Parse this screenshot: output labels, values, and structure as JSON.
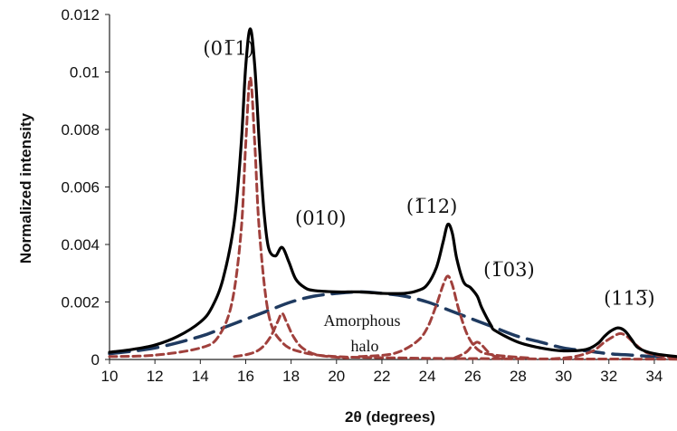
{
  "chart_data": {
    "type": "line",
    "xlabel": "2θ (degrees)",
    "ylabel": "Normalized intensity",
    "xlim": [
      10,
      35
    ],
    "ylim": [
      0,
      0.012
    ],
    "x_ticks": [
      "10",
      "12",
      "14",
      "16",
      "18",
      "20",
      "22",
      "24",
      "26",
      "28",
      "30",
      "32",
      "34"
    ],
    "y_ticks": [
      "0",
      "0.002",
      "0.004",
      "0.006",
      "0.008",
      "0.01",
      "0.012"
    ],
    "grid": false,
    "legend": "none",
    "series": [
      {
        "style": "solid",
        "color": "#000000",
        "x": [
          10,
          11,
          12,
          13,
          14,
          14.5,
          15,
          15.5,
          15.8,
          16.0,
          16.2,
          16.4,
          16.6,
          16.8,
          17.0,
          17.3,
          17.6,
          17.9,
          18.2,
          18.6,
          19,
          20,
          21,
          22,
          23,
          23.6,
          24.0,
          24.4,
          24.7,
          24.9,
          25.1,
          25.3,
          25.6,
          25.9,
          26.2,
          26.4,
          26.8,
          27,
          28,
          29,
          30,
          31,
          31.5,
          31.8,
          32.1,
          32.4,
          32.7,
          33.0,
          33.3,
          34,
          35
        ],
        "y": [
          0.00025,
          0.00035,
          0.0005,
          0.0008,
          0.0013,
          0.0018,
          0.0028,
          0.0048,
          0.0075,
          0.0102,
          0.0115,
          0.0102,
          0.0075,
          0.0052,
          0.0039,
          0.0036,
          0.0039,
          0.0034,
          0.0028,
          0.0025,
          0.0024,
          0.00235,
          0.00235,
          0.0023,
          0.0023,
          0.0024,
          0.0026,
          0.0032,
          0.0041,
          0.0047,
          0.0044,
          0.0035,
          0.0027,
          0.0025,
          0.0022,
          0.0018,
          0.0012,
          0.001,
          0.0006,
          0.0004,
          0.0003,
          0.00035,
          0.00055,
          0.0008,
          0.001,
          0.0011,
          0.001,
          0.0007,
          0.0004,
          0.0002,
          0.0001
        ]
      },
      {
        "style": "dashed",
        "color": "#A0403C",
        "x": [
          10,
          12,
          14,
          14.8,
          15.4,
          15.8,
          16.0,
          16.2,
          16.4,
          16.6,
          17.0,
          17.6,
          18.5,
          20,
          23,
          26,
          30,
          35
        ],
        "y": [
          0.0001,
          0.00015,
          0.0004,
          0.0008,
          0.002,
          0.0045,
          0.0075,
          0.0098,
          0.0075,
          0.0045,
          0.0016,
          0.0006,
          0.00025,
          0.0001,
          5e-05,
          3e-05,
          2e-05,
          1e-05
        ]
      },
      {
        "style": "dashed",
        "color": "#A0403C",
        "x": [
          15.5,
          16.2,
          16.7,
          17.1,
          17.4,
          17.6,
          17.8,
          18.1,
          18.5,
          19.2,
          20.5
        ],
        "y": [
          0.0001,
          0.0002,
          0.0004,
          0.0008,
          0.0013,
          0.0016,
          0.0013,
          0.0008,
          0.0004,
          0.00015,
          5e-05
        ]
      },
      {
        "style": "dashed",
        "color": "#A0403C",
        "x": [
          21,
          22.5,
          23.5,
          24.0,
          24.4,
          24.7,
          24.9,
          25.1,
          25.4,
          25.8,
          26.3,
          27,
          28.5
        ],
        "y": [
          0.0001,
          0.0002,
          0.0006,
          0.0011,
          0.0019,
          0.0026,
          0.0029,
          0.0026,
          0.0017,
          0.0008,
          0.0003,
          0.00015,
          5e-05
        ]
      },
      {
        "style": "dashed",
        "color": "#A0403C",
        "x": [
          25.2,
          25.7,
          26.0,
          26.2,
          26.4,
          26.7,
          27.0,
          27.4
        ],
        "y": [
          5e-05,
          0.00025,
          0.0005,
          0.0006,
          0.0005,
          0.00025,
          0.0001,
          3e-05
        ]
      },
      {
        "style": "dashed",
        "color": "#A0403C",
        "x": [
          29.5,
          30.5,
          31.3,
          31.8,
          32.2,
          32.5,
          32.8,
          33.2,
          33.8,
          35
        ],
        "y": [
          2e-05,
          0.0001,
          0.0003,
          0.0006,
          0.0008,
          0.0009,
          0.0008,
          0.0005,
          0.0002,
          5e-05
        ]
      },
      {
        "style": "longdash",
        "color": "#1F3A60",
        "x": [
          10,
          12,
          14,
          15,
          16,
          17,
          18,
          19,
          20,
          21,
          22,
          23,
          24,
          25,
          26,
          27,
          28,
          29,
          30,
          31,
          32,
          33,
          34,
          35
        ],
        "y": [
          0.0002,
          0.0004,
          0.0008,
          0.0011,
          0.0014,
          0.0017,
          0.002,
          0.0022,
          0.0023,
          0.00235,
          0.0023,
          0.0022,
          0.002,
          0.0017,
          0.0014,
          0.0011,
          0.0008,
          0.0006,
          0.0004,
          0.0003,
          0.0002,
          0.00015,
          0.0001,
          8e-05
        ]
      }
    ],
    "annotations": [
      {
        "text": "(01̅1)",
        "x": 15.25,
        "y": 0.0106
      },
      {
        "text": "(010)",
        "x": 19.3,
        "y": 0.0047
      },
      {
        "text": "(1̅12)",
        "x": 24.2,
        "y": 0.0051
      },
      {
        "text": "(1̅03)",
        "x": 27.6,
        "y": 0.0029
      },
      {
        "text": "(113̅)",
        "x": 32.9,
        "y": 0.0019
      }
    ],
    "halo_label": [
      "Amorphous",
      "halo"
    ]
  }
}
